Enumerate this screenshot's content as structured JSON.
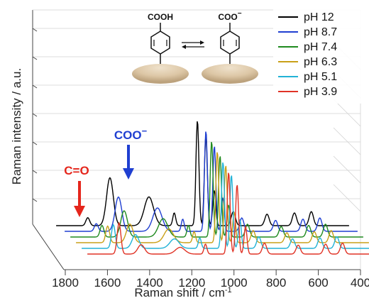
{
  "chart_data": {
    "type": "line",
    "title": "",
    "xlabel": "Raman shift / cm",
    "xlabel_sup": "-1",
    "ylabel": "Raman intensity / a.u.",
    "x_ticks": [
      1800,
      1600,
      1400,
      1200,
      1000,
      800,
      600,
      400
    ],
    "xlim": [
      1850,
      400
    ],
    "grid": true,
    "legend_position": "top-right",
    "series": [
      {
        "name": "pH 12",
        "color": "#000000"
      },
      {
        "name": "pH 8.7",
        "color": "#1f3fd1"
      },
      {
        "name": "pH 7.4",
        "color": "#1f8a1f"
      },
      {
        "name": "pH 6.3",
        "color": "#c9a018"
      },
      {
        "name": "pH 5.1",
        "color": "#22b2d6"
      },
      {
        "name": "pH 3.9",
        "color": "#e03326"
      }
    ],
    "peaks_cm-1": [
      1700,
      1595,
      1410,
      1290,
      1180,
      1140,
      1100,
      1010,
      850,
      720,
      640
    ],
    "annotations": [
      {
        "text": "C=O",
        "color": "#e5261c",
        "x": 1710
      },
      {
        "text": "COO",
        "superscript": "−",
        "color": "#1f3fd1",
        "x": 1410
      }
    ],
    "inset": {
      "left_molecule": "COOH",
      "right_molecule": "COO",
      "right_molecule_sup": "−"
    }
  }
}
